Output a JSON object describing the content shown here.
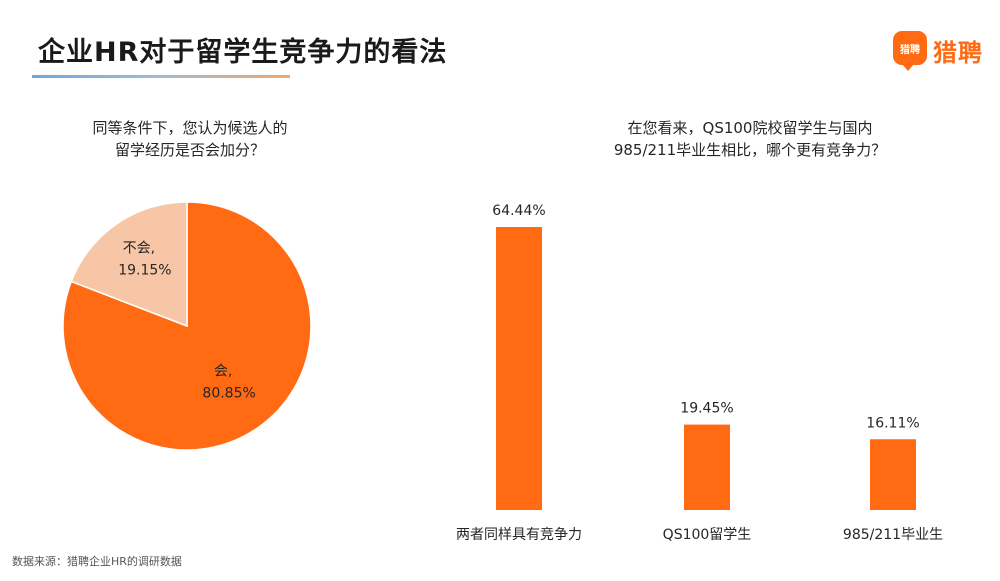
{
  "header": {
    "title": "企业HR对于留学生竞争力的看法",
    "logo_badge": "猎聘",
    "logo_text": "猎聘"
  },
  "left_panel": {
    "question": "同等条件下，您认为候选人的\n留学经历是否会加分？"
  },
  "right_panel": {
    "question": "在您看来，QS100院校留学生与国内\n985/211毕业生相比，哪个更有竞争力？"
  },
  "footnote": "数据来源：猎聘企业HR的调研数据",
  "colors": {
    "accent": "#ff6a13",
    "pie_light": "#f7c6a6"
  },
  "chart_data": [
    {
      "type": "pie",
      "slices": [
        {
          "label": "会,",
          "value": 80.85,
          "value_label": "80.85%",
          "color": "#ff6a13"
        },
        {
          "label": "不会,",
          "value": 19.15,
          "value_label": "19.15%",
          "color": "#f7c6a6"
        }
      ]
    },
    {
      "type": "bar",
      "categories": [
        "两者同样具有竞争力",
        "QS100留学生",
        "985/211毕业生"
      ],
      "values": [
        64.44,
        19.45,
        16.11
      ],
      "value_labels": [
        "64.44%",
        "19.45%",
        "16.11%"
      ],
      "ylim": [
        0,
        64.44
      ],
      "color": "#ff6a13"
    }
  ]
}
